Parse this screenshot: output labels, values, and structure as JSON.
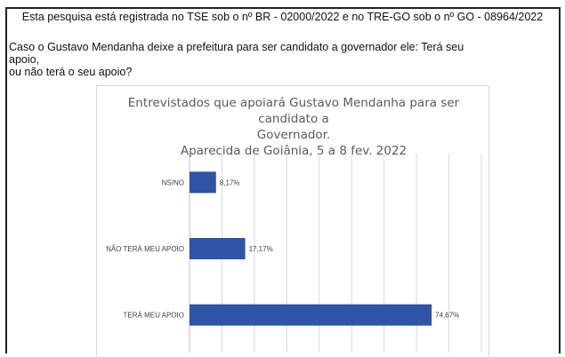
{
  "header": {
    "registry_text": "Esta pesquisa está registrada no TSE sob o nº BR - 02000/2022 e no TRE-GO sob o nº GO - 08964/2022"
  },
  "question": {
    "line1": "Caso o Gustavo Mendanha deixe a prefeitura para ser candidato a governador ele: Terá seu apoio,",
    "line2": "ou não terá o seu apoio?"
  },
  "chart_data": {
    "type": "bar",
    "orientation": "horizontal",
    "title_lines": [
      "Entrevistados que apoiará Gustavo Mendanha para ser candidato a",
      "Governador.",
      "Aparecida de Goiânia, 5 a 8 fev. 2022"
    ],
    "categories": [
      "NS/NO",
      "NÃO TERÁ MEU APOIO",
      "TERÁ MEU APOIO"
    ],
    "values": [
      8.17,
      17.17,
      74.67
    ],
    "value_labels": [
      "8,17%",
      "17,17%",
      "74,67%"
    ],
    "xlim": [
      0,
      90
    ],
    "grid": true,
    "bar_color": "#2e54a3",
    "grid_color": "#d9d9d9"
  }
}
